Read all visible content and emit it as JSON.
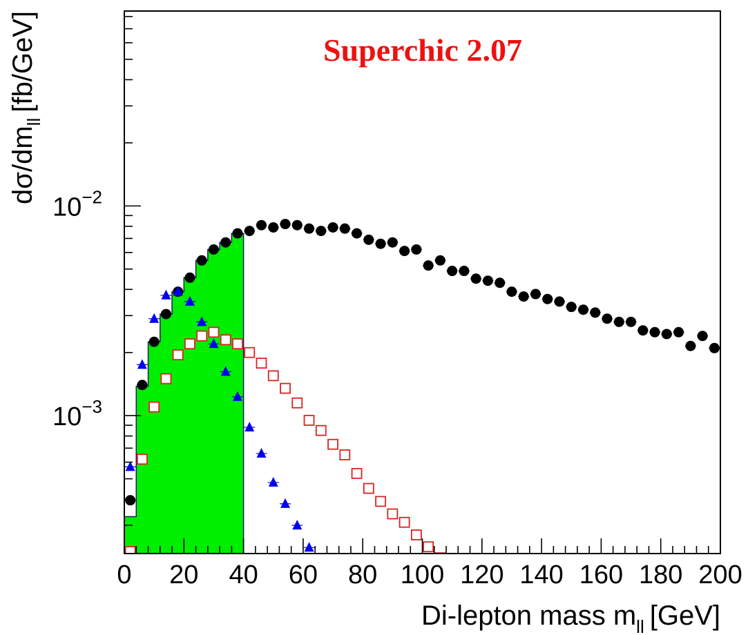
{
  "chart_data": {
    "type": "scatter",
    "title": "Superchic 2.07",
    "title_color": "#ee1111",
    "xlabel": "Di-lepton mass m",
    "xlabel_sub": "ll",
    "xlabel_unit": "[GeV]",
    "ylabel": "dσ/dm",
    "ylabel_sub": "ll",
    "ylabel_unit": "[fb/GeV]",
    "xlim": [
      0,
      200
    ],
    "ylim": [
      0.00022,
      0.085
    ],
    "yscale": "log",
    "grid": false,
    "x_tick_labels": [
      "0",
      "20",
      "40",
      "60",
      "80",
      "100",
      "120",
      "140",
      "160",
      "180",
      "200"
    ],
    "y_tick_labels": [
      {
        "value": 0.001,
        "base": "10",
        "exp": "−3"
      },
      {
        "value": 0.01,
        "base": "10",
        "exp": "−2"
      }
    ],
    "histogram": {
      "color": "#00ee00",
      "edge_color": "#1a1a66",
      "bin_edges": [
        0,
        4,
        8,
        12,
        16,
        20,
        24,
        28,
        32,
        36,
        40
      ],
      "values": [
        0.00033,
        0.00138,
        0.00225,
        0.00305,
        0.0039,
        0.00455,
        0.0055,
        0.0062,
        0.0067,
        0.0074
      ]
    },
    "series": [
      {
        "marker": "circle",
        "color": "#000000",
        "x": [
          2,
          6,
          10,
          14,
          18,
          22,
          26,
          30,
          34,
          38,
          42,
          46,
          50,
          54,
          58,
          62,
          66,
          70,
          74,
          78,
          82,
          86,
          90,
          94,
          98,
          102,
          106,
          110,
          114,
          118,
          122,
          126,
          130,
          134,
          138,
          142,
          146,
          150,
          154,
          158,
          162,
          166,
          170,
          174,
          178,
          182,
          186,
          190,
          194,
          198
        ],
        "y": [
          0.000395,
          0.0014,
          0.00225,
          0.00305,
          0.0039,
          0.00455,
          0.0055,
          0.0062,
          0.0067,
          0.0074,
          0.0076,
          0.0081,
          0.0079,
          0.0082,
          0.0081,
          0.0078,
          0.0076,
          0.0079,
          0.0078,
          0.0074,
          0.0069,
          0.0066,
          0.0067,
          0.0061,
          0.0062,
          0.0052,
          0.0055,
          0.0049,
          0.0049,
          0.0045,
          0.0044,
          0.0043,
          0.0039,
          0.0037,
          0.0038,
          0.0036,
          0.0035,
          0.0033,
          0.0032,
          0.0031,
          0.0029,
          0.0028,
          0.0028,
          0.00255,
          0.0025,
          0.00245,
          0.0025,
          0.00215,
          0.0024,
          0.0021
        ]
      },
      {
        "marker": "triangle",
        "color": "#0000ee",
        "x": [
          2,
          6,
          10,
          14,
          18,
          22,
          26,
          30,
          34,
          38,
          42,
          46,
          50,
          54,
          58,
          62
        ],
        "y": [
          0.00057,
          0.00175,
          0.0029,
          0.00375,
          0.0039,
          0.0035,
          0.0028,
          0.0022,
          0.00162,
          0.00123,
          0.00088,
          0.00066,
          0.00048,
          0.00038,
          0.0003,
          0.000235
        ]
      },
      {
        "marker": "open-square",
        "color": "#dd2222",
        "x": [
          2,
          6,
          10,
          14,
          18,
          22,
          26,
          30,
          34,
          38,
          42,
          46,
          50,
          54,
          58,
          62,
          66,
          70,
          74,
          78,
          82,
          86,
          90,
          94,
          98,
          102,
          106
        ],
        "y": [
          0.000225,
          0.00062,
          0.0011,
          0.0015,
          0.00195,
          0.0022,
          0.0024,
          0.0025,
          0.0023,
          0.0022,
          0.002,
          0.00178,
          0.00155,
          0.00135,
          0.00115,
          0.00095,
          0.00085,
          0.00073,
          0.00065,
          0.00053,
          0.00045,
          0.00039,
          0.00034,
          0.00031,
          0.00027,
          0.000237,
          0.00021
        ]
      }
    ]
  }
}
